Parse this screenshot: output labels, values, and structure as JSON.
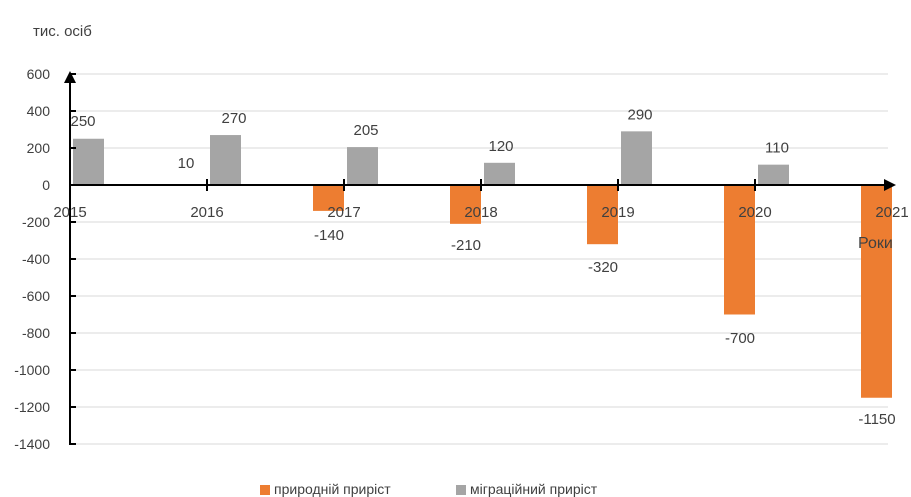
{
  "chart_data": {
    "type": "bar",
    "title": "",
    "ylabel": "тис. осіб",
    "xlabel": "Роки",
    "x_ticks": [
      "2015",
      "2016",
      "2017",
      "2018",
      "2019",
      "2020",
      "2021"
    ],
    "y_ticks": [
      "600",
      "400",
      "200",
      "0",
      "-200",
      "-400",
      "-600",
      "-800",
      "-1000",
      "-1200",
      "-1400"
    ],
    "ylim": [
      -1400,
      600
    ],
    "grid": true,
    "legend": "bottom",
    "series": [
      {
        "name": "природній приріст",
        "color": "#ED7D31",
        "values": [
          0,
          0,
          -140,
          -210,
          -320,
          -700,
          -1150
        ],
        "labels": [
          "",
          "",
          "-140",
          "-210",
          "-320",
          "-700",
          "-1150"
        ]
      },
      {
        "name": "міграційний приріст",
        "color": "#A5A5A5",
        "values": [
          250,
          270,
          205,
          120,
          290,
          110,
          null
        ],
        "labels": [
          "250",
          "270",
          "205",
          "120",
          "290",
          "110",
          ""
        ]
      }
    ],
    "annotations": [
      "10"
    ]
  }
}
